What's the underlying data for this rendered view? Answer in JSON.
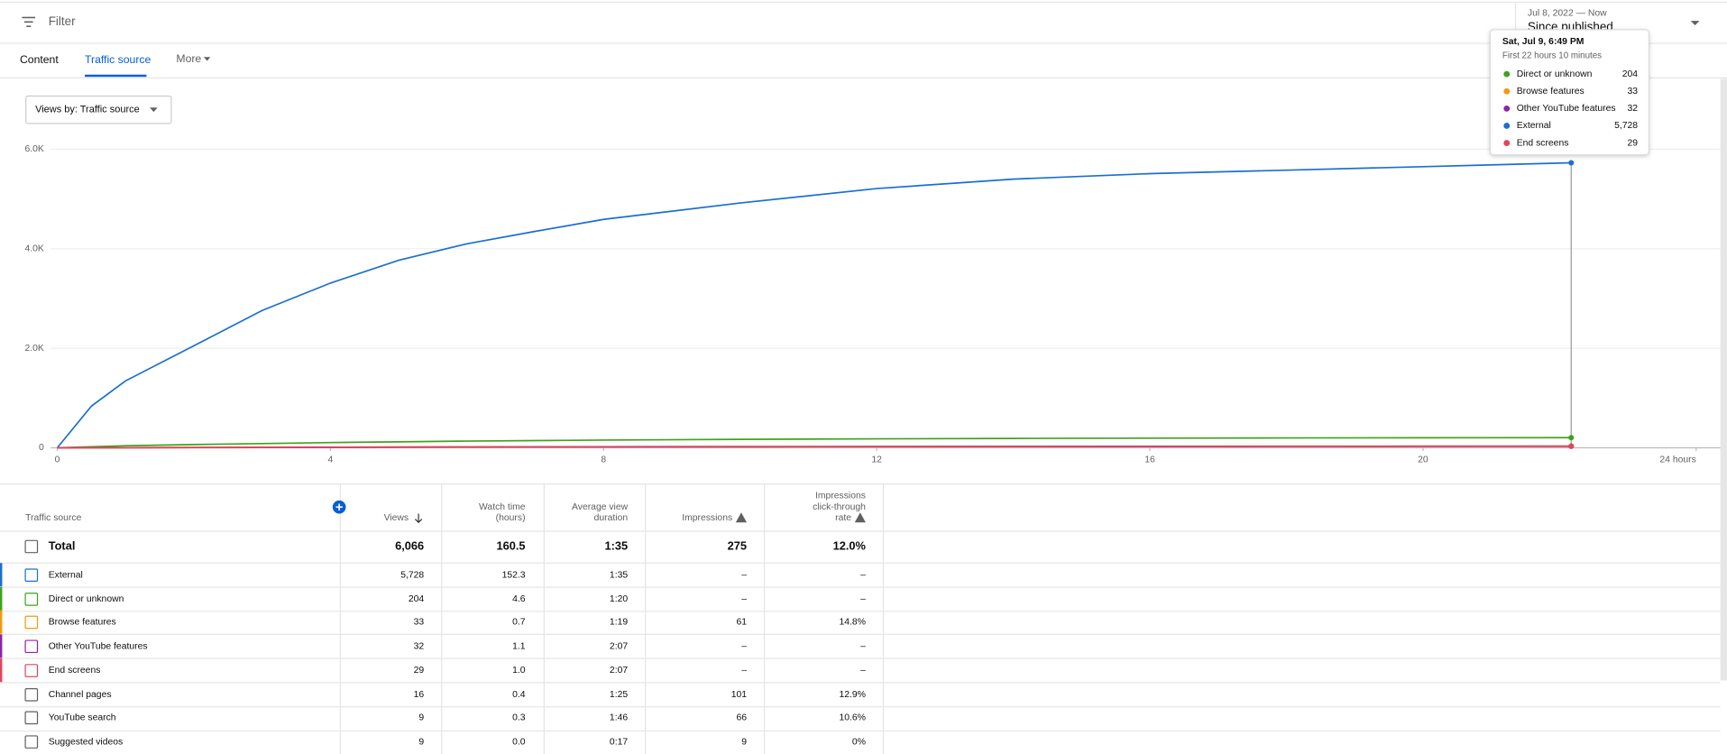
{
  "header": {
    "filter": "Filter",
    "date_range": "Jul 8, 2022 — Now",
    "period": "Since published"
  },
  "tabs": [
    "Content",
    "Traffic source",
    "More"
  ],
  "view_selector": "Views by: Traffic source",
  "chart_data": {
    "type": "line",
    "x": [
      0,
      0.5,
      1,
      2,
      3,
      4,
      5,
      6,
      7,
      8,
      10,
      12,
      14,
      16,
      18,
      20,
      22.17
    ],
    "xlim": [
      0,
      24
    ],
    "xticks": [
      0,
      4,
      8,
      12,
      16,
      20,
      {
        "value": 24,
        "label": "24 hours"
      }
    ],
    "ylim": [
      0,
      6000
    ],
    "yticks": [
      0,
      {
        "value": 2000,
        "label": "2.0K"
      },
      {
        "value": 4000,
        "label": "4.0K"
      },
      {
        "value": 6000,
        "label": "6.0K"
      }
    ],
    "grid": true,
    "series": [
      {
        "name": "Direct or unknown",
        "color": "#3ea31a",
        "values": [
          0,
          20,
          40,
          65,
          85,
          105,
          120,
          135,
          145,
          155,
          170,
          180,
          188,
          194,
          198,
          201,
          204
        ]
      },
      {
        "name": "Browse features",
        "color": "#f29a0c",
        "values": [
          0,
          1,
          3,
          6,
          9,
          12,
          15,
          17,
          19,
          21,
          24,
          26,
          28,
          30,
          31,
          32,
          33
        ]
      },
      {
        "name": "Other YouTube features",
        "color": "#8e24aa",
        "values": [
          0,
          1,
          2,
          5,
          8,
          11,
          14,
          16,
          18,
          20,
          23,
          25,
          27,
          29,
          30,
          31,
          32
        ]
      },
      {
        "name": "External",
        "color": "#1a6fd1",
        "values": [
          0,
          838,
          1345,
          2050,
          2760,
          3310,
          3770,
          4100,
          4350,
          4590,
          4920,
          5210,
          5400,
          5510,
          5580,
          5650,
          5728
        ]
      },
      {
        "name": "End screens",
        "color": "#e0465b",
        "values": [
          0,
          1,
          2,
          4,
          6,
          8,
          11,
          13,
          15,
          17,
          20,
          22,
          24,
          26,
          27,
          28,
          29
        ]
      }
    ],
    "tooltip": {
      "title": "Sat, Jul 9, 6:49 PM",
      "subtitle": "First 22 hours 10 minutes",
      "values": [
        "204",
        "33",
        "32",
        "5,728",
        "29"
      ]
    }
  },
  "table": {
    "columns": [
      [
        "Traffic source"
      ],
      [
        "Views"
      ],
      [
        "Watch time",
        "(hours)"
      ],
      [
        "Average view",
        "duration"
      ],
      [
        "Impressions"
      ],
      [
        "Impressions",
        "click-through",
        "rate"
      ]
    ],
    "rows": [
      [
        "Total",
        "6,066",
        "160.5",
        "1:35",
        "275",
        "12.0%"
      ],
      [
        "External",
        "5,728",
        "152.3",
        "1:35",
        "–",
        "–"
      ],
      [
        "Direct or unknown",
        "204",
        "4.6",
        "1:20",
        "–",
        "–"
      ],
      [
        "Browse features",
        "33",
        "0.7",
        "1:19",
        "61",
        "14.8%"
      ],
      [
        "Other YouTube features",
        "32",
        "1.1",
        "2:07",
        "–",
        "–"
      ],
      [
        "End screens",
        "29",
        "1.0",
        "2:07",
        "–",
        "–"
      ],
      [
        "Channel pages",
        "16",
        "0.4",
        "1:25",
        "101",
        "12.9%"
      ],
      [
        "YouTube search",
        "9",
        "0.3",
        "1:46",
        "66",
        "10.6%"
      ],
      [
        "Suggested videos",
        "9",
        "0.0",
        "0:17",
        "9",
        "0%"
      ]
    ]
  }
}
